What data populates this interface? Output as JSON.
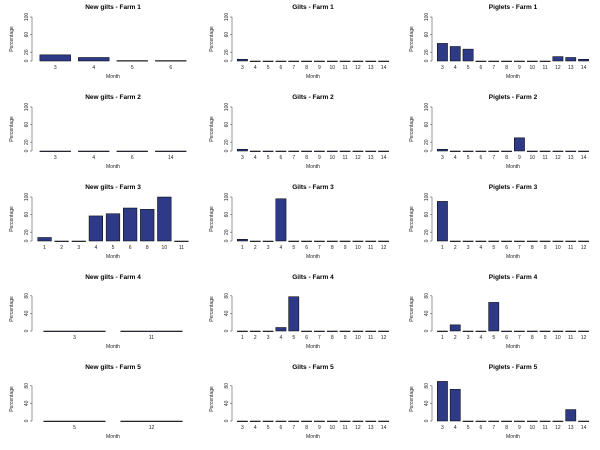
{
  "figure": {
    "bar_color": "#2e3a86",
    "axis_color": "#555555"
  },
  "chart_data": [
    {
      "type": "bar",
      "title": "New gilts - Farm 1",
      "xlabel": "Month",
      "ylabel": "Percentage",
      "ylim": [
        0,
        100
      ],
      "yticks": [
        0,
        20,
        60,
        100
      ],
      "categories": [
        "3",
        "4",
        "5",
        "6"
      ],
      "values": [
        14,
        8,
        1,
        1
      ]
    },
    {
      "type": "bar",
      "title": "Gilts - Farm 1",
      "xlabel": "Month",
      "ylabel": "Percentage",
      "ylim": [
        0,
        100
      ],
      "yticks": [
        0,
        20,
        60,
        100
      ],
      "categories": [
        "3",
        "4",
        "5",
        "6",
        "7",
        "8",
        "9",
        "10",
        "11",
        "12",
        "13",
        "14"
      ],
      "values": [
        4,
        0,
        0,
        0,
        0,
        0,
        0,
        0,
        0,
        0,
        0,
        0
      ]
    },
    {
      "type": "bar",
      "title": "Piglets - Farm 1",
      "xlabel": "Month",
      "ylabel": "Percentage",
      "ylim": [
        0,
        100
      ],
      "yticks": [
        0,
        20,
        60,
        100
      ],
      "categories": [
        "3",
        "4",
        "5",
        "6",
        "7",
        "8",
        "9",
        "10",
        "11",
        "12",
        "13",
        "14"
      ],
      "values": [
        40,
        33,
        27,
        0,
        0,
        0,
        0,
        0,
        0,
        10,
        8,
        4
      ]
    },
    {
      "type": "bar",
      "title": "New gilts - Farm 2",
      "xlabel": "Month",
      "ylabel": "Percentage",
      "ylim": [
        0,
        100
      ],
      "yticks": [
        0,
        20,
        60,
        100
      ],
      "categories": [
        "3",
        "4",
        "6",
        "14"
      ],
      "values": [
        0,
        0,
        0,
        0
      ]
    },
    {
      "type": "bar",
      "title": "Gilts - Farm 2",
      "xlabel": "Month",
      "ylabel": "Percentage",
      "ylim": [
        0,
        100
      ],
      "yticks": [
        0,
        20,
        60,
        100
      ],
      "categories": [
        "3",
        "4",
        "5",
        "6",
        "7",
        "8",
        "9",
        "10",
        "11",
        "12",
        "13",
        "14"
      ],
      "values": [
        4,
        0,
        0,
        0,
        0,
        0,
        0,
        0,
        0,
        0,
        0,
        0
      ]
    },
    {
      "type": "bar",
      "title": "Piglets - Farm 2",
      "xlabel": "Month",
      "ylabel": "Percentage",
      "ylim": [
        0,
        100
      ],
      "yticks": [
        0,
        20,
        60,
        100
      ],
      "categories": [
        "3",
        "4",
        "5",
        "6",
        "7",
        "8",
        "9",
        "10",
        "11",
        "12",
        "13",
        "14"
      ],
      "values": [
        4,
        0,
        0,
        0,
        0,
        0,
        30,
        0,
        0,
        0,
        0,
        0
      ]
    },
    {
      "type": "bar",
      "title": "New gilts - Farm 3",
      "xlabel": "Month",
      "ylabel": "Percentage",
      "ylim": [
        0,
        100
      ],
      "yticks": [
        0,
        20,
        60,
        100
      ],
      "categories": [
        "1",
        "2",
        "3",
        "4",
        "5",
        "6",
        "8",
        "10",
        "11"
      ],
      "values": [
        8,
        0,
        0,
        57,
        62,
        75,
        72,
        100,
        0
      ]
    },
    {
      "type": "bar",
      "title": "Gilts - Farm 3",
      "xlabel": "Month",
      "ylabel": "Percentage",
      "ylim": [
        0,
        100
      ],
      "yticks": [
        0,
        20,
        60,
        100
      ],
      "categories": [
        "1",
        "2",
        "3",
        "4",
        "5",
        "6",
        "7",
        "8",
        "9",
        "10",
        "11",
        "12"
      ],
      "values": [
        4,
        0,
        0,
        96,
        0,
        0,
        0,
        0,
        0,
        0,
        0,
        0
      ]
    },
    {
      "type": "bar",
      "title": "Piglets - Farm 3",
      "xlabel": "Month",
      "ylabel": "Percentage",
      "ylim": [
        0,
        100
      ],
      "yticks": [
        0,
        20,
        60,
        100
      ],
      "categories": [
        "1",
        "2",
        "3",
        "4",
        "5",
        "6",
        "7",
        "8",
        "9",
        "10",
        "11",
        "12"
      ],
      "values": [
        90,
        0,
        0,
        0,
        0,
        0,
        0,
        0,
        0,
        0,
        0,
        0
      ]
    },
    {
      "type": "bar",
      "title": "New gilts - Farm 4",
      "xlabel": "Month",
      "ylabel": "Percentage",
      "ylim": [
        0,
        100
      ],
      "yticks": [
        0,
        40,
        80
      ],
      "categories": [
        "3",
        "11"
      ],
      "values": [
        0,
        0
      ]
    },
    {
      "type": "bar",
      "title": "Gilts - Farm 4",
      "xlabel": "Month",
      "ylabel": "Percentage",
      "ylim": [
        0,
        100
      ],
      "yticks": [
        0,
        40,
        80
      ],
      "categories": [
        "1",
        "2",
        "3",
        "4",
        "5",
        "6",
        "7",
        "8",
        "9",
        "10",
        "11",
        "12"
      ],
      "values": [
        0,
        0,
        0,
        8,
        78,
        0,
        0,
        0,
        0,
        0,
        0,
        0
      ]
    },
    {
      "type": "bar",
      "title": "Piglets - Farm 4",
      "xlabel": "Month",
      "ylabel": "Percentage",
      "ylim": [
        0,
        100
      ],
      "yticks": [
        0,
        40,
        80
      ],
      "categories": [
        "1",
        "2",
        "3",
        "4",
        "5",
        "6",
        "7",
        "8",
        "9",
        "10",
        "11",
        "12"
      ],
      "values": [
        0,
        14,
        0,
        0,
        65,
        0,
        0,
        0,
        0,
        0,
        0,
        0
      ]
    },
    {
      "type": "bar",
      "title": "New gilts - Farm 5",
      "xlabel": "Month",
      "ylabel": "Percentage",
      "ylim": [
        0,
        100
      ],
      "yticks": [
        0,
        40,
        80
      ],
      "categories": [
        "5",
        "12"
      ],
      "values": [
        0,
        0
      ]
    },
    {
      "type": "bar",
      "title": "Gilts - Farm 5",
      "xlabel": "Month",
      "ylabel": "Percentage",
      "ylim": [
        0,
        100
      ],
      "yticks": [
        0,
        40,
        80
      ],
      "categories": [
        "3",
        "4",
        "5",
        "6",
        "7",
        "8",
        "9",
        "10",
        "11",
        "12",
        "13",
        "14"
      ],
      "values": [
        0,
        0,
        0,
        0,
        0,
        0,
        0,
        0,
        0,
        0,
        0,
        0
      ]
    },
    {
      "type": "bar",
      "title": "Piglets - Farm 5",
      "xlabel": "Month",
      "ylabel": "Percentage",
      "ylim": [
        0,
        100
      ],
      "yticks": [
        0,
        40,
        80
      ],
      "categories": [
        "3",
        "4",
        "5",
        "6",
        "7",
        "8",
        "9",
        "10",
        "11",
        "12",
        "13",
        "14"
      ],
      "values": [
        90,
        72,
        0,
        0,
        0,
        0,
        0,
        0,
        0,
        0,
        26,
        0
      ]
    }
  ]
}
